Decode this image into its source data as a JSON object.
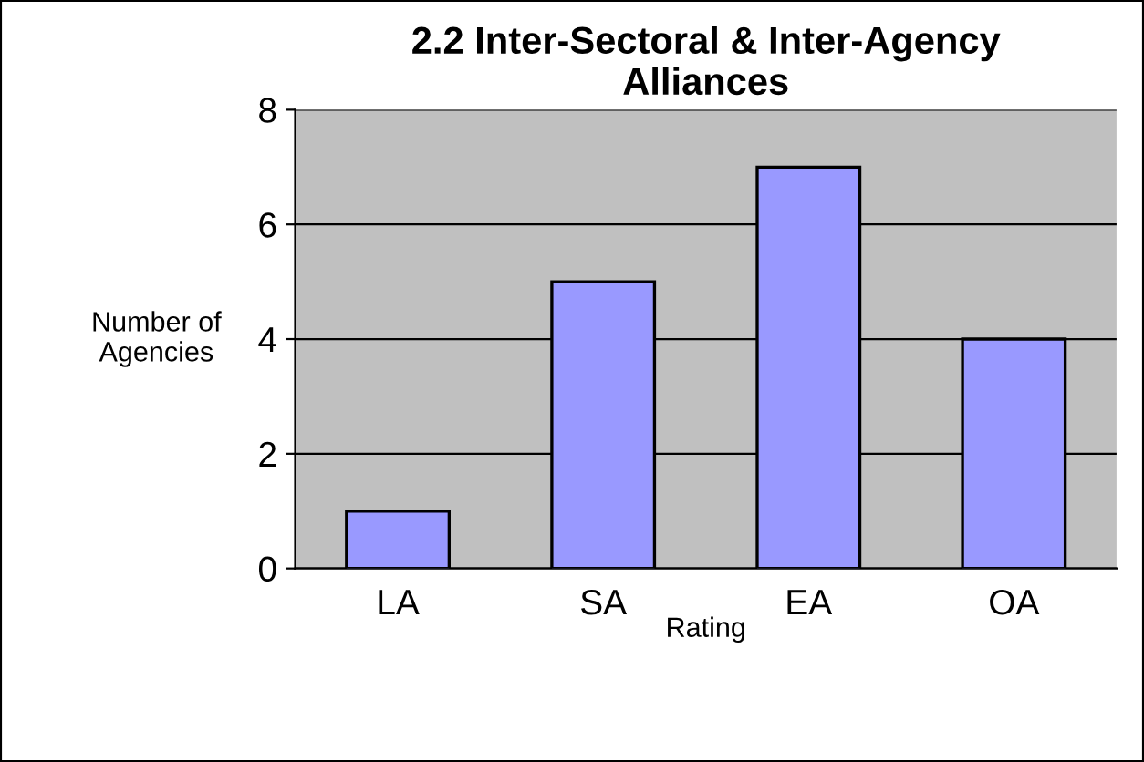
{
  "chart_data": {
    "type": "bar",
    "title": "2.2 Inter-Sectoral & Inter-Agency\nAlliances",
    "xlabel": "Rating",
    "ylabel": "Number of\nAgencies",
    "categories": [
      "LA",
      "SA",
      "EA",
      "OA"
    ],
    "values": [
      1,
      5,
      7,
      4
    ],
    "color": "#9999ff",
    "ylim": [
      0,
      8
    ],
    "yticks": [
      0,
      2,
      4,
      6,
      8
    ],
    "grid": "y"
  }
}
